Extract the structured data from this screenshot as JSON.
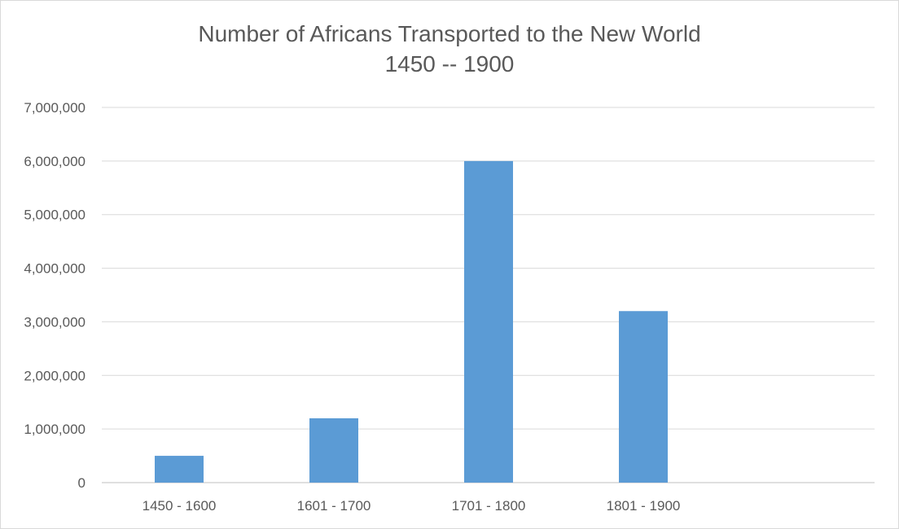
{
  "chart_data": {
    "type": "bar",
    "title_lines": [
      "Number of Africans Transported to the New World",
      "1450 -- 1900"
    ],
    "categories": [
      "1450 - 1600",
      "1601 - 1700",
      "1701 - 1800",
      "1801 - 1900"
    ],
    "values": [
      500000,
      1200000,
      6000000,
      3200000
    ],
    "ylim": [
      0,
      7000000
    ],
    "yticks": [
      0,
      1000000,
      2000000,
      3000000,
      4000000,
      5000000,
      6000000,
      7000000
    ],
    "ytick_labels": [
      "0",
      "1,000,000",
      "2,000,000",
      "3,000,000",
      "4,000,000",
      "5,000,000",
      "6,000,000",
      "7,000,000"
    ],
    "xlabel": "",
    "ylabel": "",
    "grid": true,
    "legend": "none",
    "bar_color": "#5b9bd5",
    "grid_color": "#d9d9d9"
  }
}
